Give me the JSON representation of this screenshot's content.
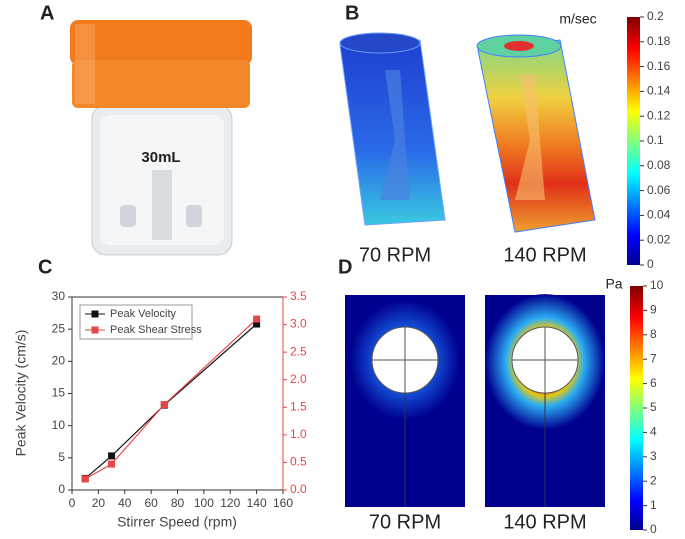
{
  "panel_labels": [
    "A",
    "B",
    "C",
    "D"
  ],
  "photo": {
    "label": "30mL"
  },
  "velocity_map": {
    "unit": "m/sec",
    "range": [
      0,
      0.2
    ],
    "ticks": [
      0,
      0.02,
      0.04,
      0.06,
      0.08,
      0.1,
      0.12,
      0.14,
      0.16,
      0.18,
      0.2
    ],
    "captions": [
      "70 RPM",
      "140 RPM"
    ]
  },
  "chart_data": {
    "type": "line",
    "xlabel": "Stirrer Speed (rpm)",
    "ylabel": "Peak Velocity (cm/s)",
    "x": [
      10,
      30,
      70,
      140
    ],
    "series": [
      {
        "name": "Peak Velocity",
        "color": "#111111",
        "values": [
          1.8,
          5.3,
          13.2,
          25.8
        ]
      },
      {
        "name": "Peak Shear Stress",
        "color": "#e8474a",
        "axis": "y2",
        "values": [
          0.2,
          0.47,
          1.55,
          3.1
        ]
      }
    ],
    "xlim": [
      0,
      160
    ],
    "xticks": [
      0,
      20,
      40,
      60,
      80,
      100,
      120,
      140,
      160
    ],
    "ylim": [
      0,
      30
    ],
    "yticks": [
      0,
      5,
      10,
      15,
      20,
      25,
      30
    ],
    "y2lim": [
      0,
      3.5
    ],
    "y2ticks": [
      {
        "value": 0,
        "label": "0.0"
      },
      0.5,
      {
        "value": 1,
        "label": "1.0"
      },
      1.5,
      {
        "value": 2,
        "label": "2.0"
      },
      2.5,
      {
        "value": 3,
        "label": "3.0"
      },
      3.5
    ],
    "legend": "upper-left"
  },
  "stress_map": {
    "unit": "Pa",
    "range": [
      0,
      10
    ],
    "ticks": [
      0,
      1,
      2,
      3,
      4,
      5,
      6,
      7,
      8,
      9,
      10
    ],
    "captions": [
      "70 RPM",
      "140 RPM"
    ]
  }
}
